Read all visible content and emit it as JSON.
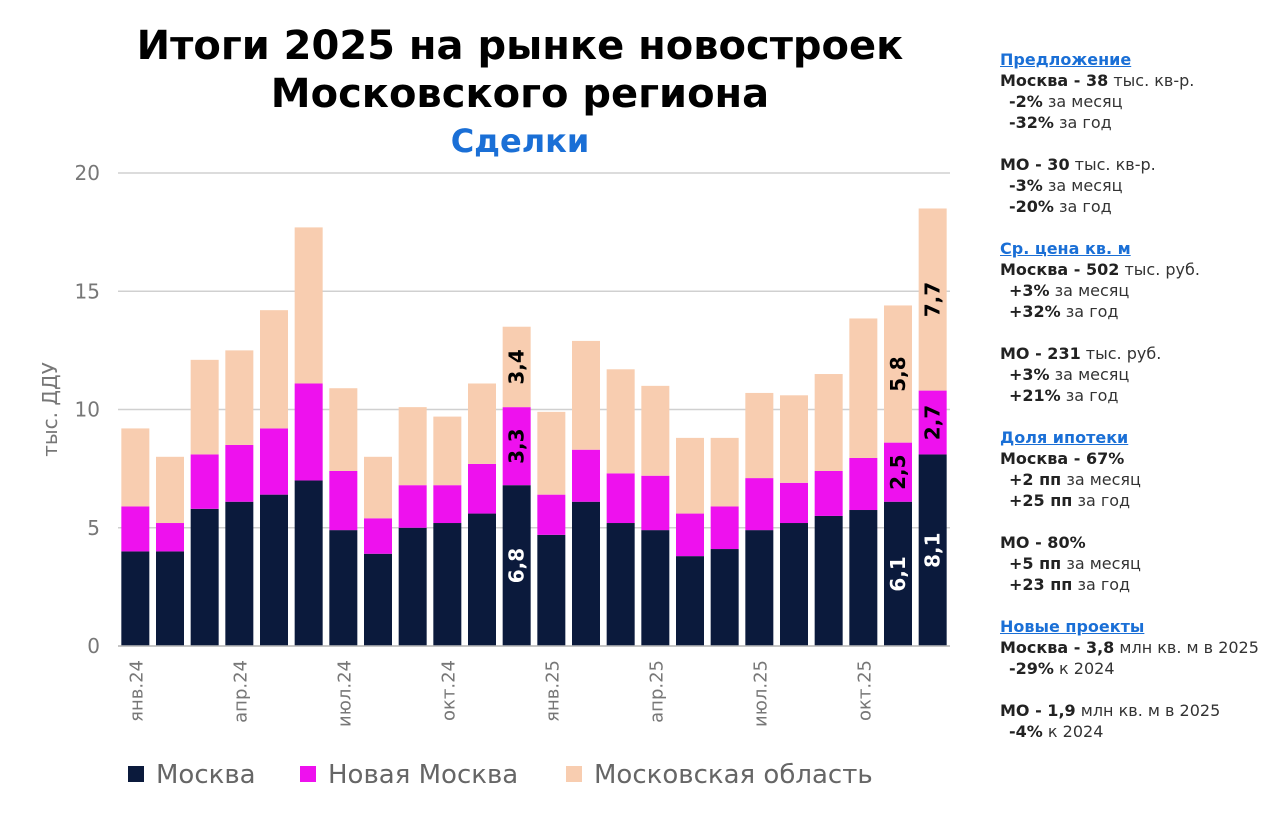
{
  "chart_data": {
    "type": "stacked_bar",
    "title": "Итоги 2025 на рынке новостроек Московского региона",
    "subtitle": "Сделки",
    "y_label": "тыс. ДДУ",
    "categories": [
      "янв.24",
      null,
      null,
      "апр.24",
      null,
      null,
      "июл.24",
      null,
      null,
      "окт.24",
      null,
      null,
      "янв.25",
      null,
      null,
      "апр.25",
      null,
      null,
      "июл.25",
      null,
      null,
      "окт.25",
      null,
      null
    ],
    "series": [
      {
        "name": "Москва",
        "color": "#0b1a3c",
        "values": [
          4.0,
          4.0,
          5.8,
          6.1,
          6.4,
          7.0,
          4.9,
          3.9,
          5.0,
          5.2,
          5.6,
          6.8,
          4.7,
          6.1,
          5.2,
          4.9,
          3.8,
          4.1,
          4.9,
          5.2,
          5.5,
          5.75,
          6.1,
          8.1
        ],
        "value_labels": [
          null,
          null,
          null,
          null,
          null,
          null,
          null,
          null,
          null,
          null,
          null,
          "6,8",
          null,
          null,
          null,
          null,
          null,
          null,
          null,
          null,
          null,
          null,
          "6,1",
          "8,1"
        ]
      },
      {
        "name": "Новая Москва",
        "color": "#ee11ee",
        "values": [
          1.9,
          1.2,
          2.3,
          2.4,
          2.8,
          4.1,
          2.5,
          1.5,
          1.8,
          1.6,
          2.1,
          3.3,
          1.7,
          2.2,
          2.1,
          2.3,
          1.8,
          1.8,
          2.2,
          1.7,
          1.9,
          2.2,
          2.5,
          2.7
        ],
        "value_labels": [
          null,
          null,
          null,
          null,
          null,
          null,
          null,
          null,
          null,
          null,
          null,
          "3,3",
          null,
          null,
          null,
          null,
          null,
          null,
          null,
          null,
          null,
          null,
          "2,5",
          "2,7"
        ]
      },
      {
        "name": "Московская область",
        "color": "#f8cdb0",
        "values": [
          3.3,
          2.8,
          4.0,
          4.0,
          5.0,
          6.6,
          3.5,
          2.6,
          3.3,
          2.9,
          3.4,
          3.4,
          3.5,
          4.6,
          4.4,
          3.8,
          3.2,
          2.9,
          3.6,
          3.7,
          4.1,
          5.9,
          5.8,
          7.7
        ],
        "value_labels": [
          null,
          null,
          null,
          null,
          null,
          null,
          null,
          null,
          null,
          null,
          null,
          "3,4",
          null,
          null,
          null,
          null,
          null,
          null,
          null,
          null,
          null,
          null,
          "5,8",
          "7,7"
        ]
      }
    ],
    "ylim": [
      0,
      20
    ],
    "yticks": [
      0,
      5,
      10,
      15,
      20
    ],
    "grid": true,
    "legend": "bottom"
  },
  "sidebar": {
    "sections": [
      {
        "heading": "Предложение",
        "groups": [
          [
            {
              "bold": "Москва - 38",
              "text": "тыс. кв-р."
            },
            {
              "bold": "-2%",
              "text": "за месяц"
            },
            {
              "bold": "-32%",
              "text": "за год"
            }
          ],
          [
            {
              "bold": "МО - 30",
              "text": "тыс. кв-р."
            },
            {
              "bold": "-3%",
              "text": "за месяц"
            },
            {
              "bold": "-20%",
              "text": "за год"
            }
          ]
        ]
      },
      {
        "heading": "Ср. цена кв. м",
        "groups": [
          [
            {
              "bold": "Москва - 502",
              "text": "тыс. руб."
            },
            {
              "bold": "+3%",
              "text": "за месяц"
            },
            {
              "bold": "+32%",
              "text": "за год"
            }
          ],
          [
            {
              "bold": "МО - 231",
              "text": "тыс. руб."
            },
            {
              "bold": "+3%",
              "text": "за месяц"
            },
            {
              "bold": "+21%",
              "text": "за год"
            }
          ]
        ]
      },
      {
        "heading": "Доля ипотеки",
        "groups": [
          [
            {
              "bold": "Москва - 67%"
            },
            {
              "bold": "+2 пп",
              "text": "за месяц"
            },
            {
              "bold": "+25 пп",
              "text": "за год"
            }
          ],
          [
            {
              "bold": "МО - 80%"
            },
            {
              "bold": "+5 пп",
              "text": "за месяц"
            },
            {
              "bold": "+23 пп",
              "text": "за год"
            }
          ]
        ]
      },
      {
        "heading": "Новые проекты",
        "groups": [
          [
            {
              "bold": "Москва - 3,8",
              "text": "млн кв. м в 2025"
            },
            {
              "bold": "-29%",
              "text": "к 2024"
            }
          ],
          [
            {
              "bold": "МО - 1,9",
              "text": "млн кв. м в 2025"
            },
            {
              "bold": "-4%",
              "text": "к 2024"
            }
          ]
        ]
      }
    ]
  }
}
